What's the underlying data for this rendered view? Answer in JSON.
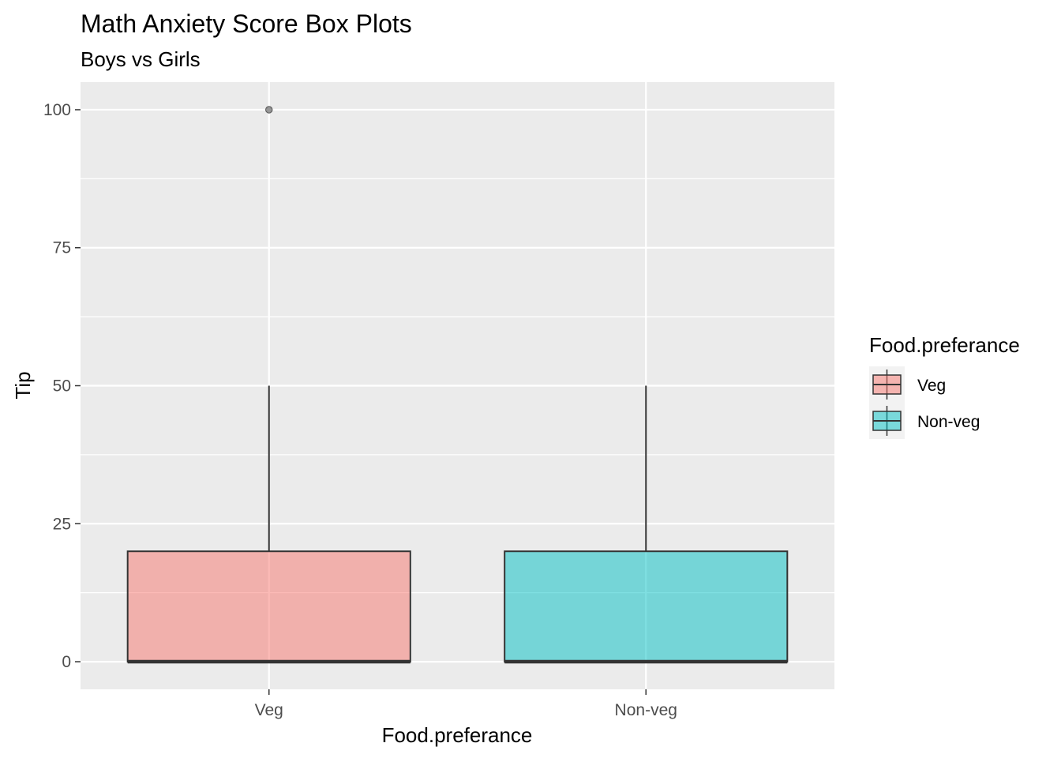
{
  "chart_data": {
    "type": "boxplot",
    "title": "Math Anxiety Score Box Plots",
    "subtitle": "Boys vs Girls",
    "xlabel": "Food.preferance",
    "ylabel": "Tip",
    "categories": [
      "Veg",
      "Non-veg"
    ],
    "ylim": [
      -5,
      105
    ],
    "yticks": [
      0,
      25,
      50,
      75,
      100
    ],
    "grid": true,
    "legend": {
      "title": "Food.preferance",
      "position": "right",
      "entries": [
        "Veg",
        "Non-veg"
      ]
    },
    "series": [
      {
        "category": "Veg",
        "fill": "#F8766D",
        "min": 0,
        "q1": 0,
        "median": 0,
        "q3": 20,
        "max": 50,
        "outliers": [
          100
        ]
      },
      {
        "category": "Non-veg",
        "fill": "#00BFC4",
        "min": 0,
        "q1": 0,
        "median": 0,
        "q3": 20,
        "max": 50,
        "outliers": []
      }
    ]
  }
}
